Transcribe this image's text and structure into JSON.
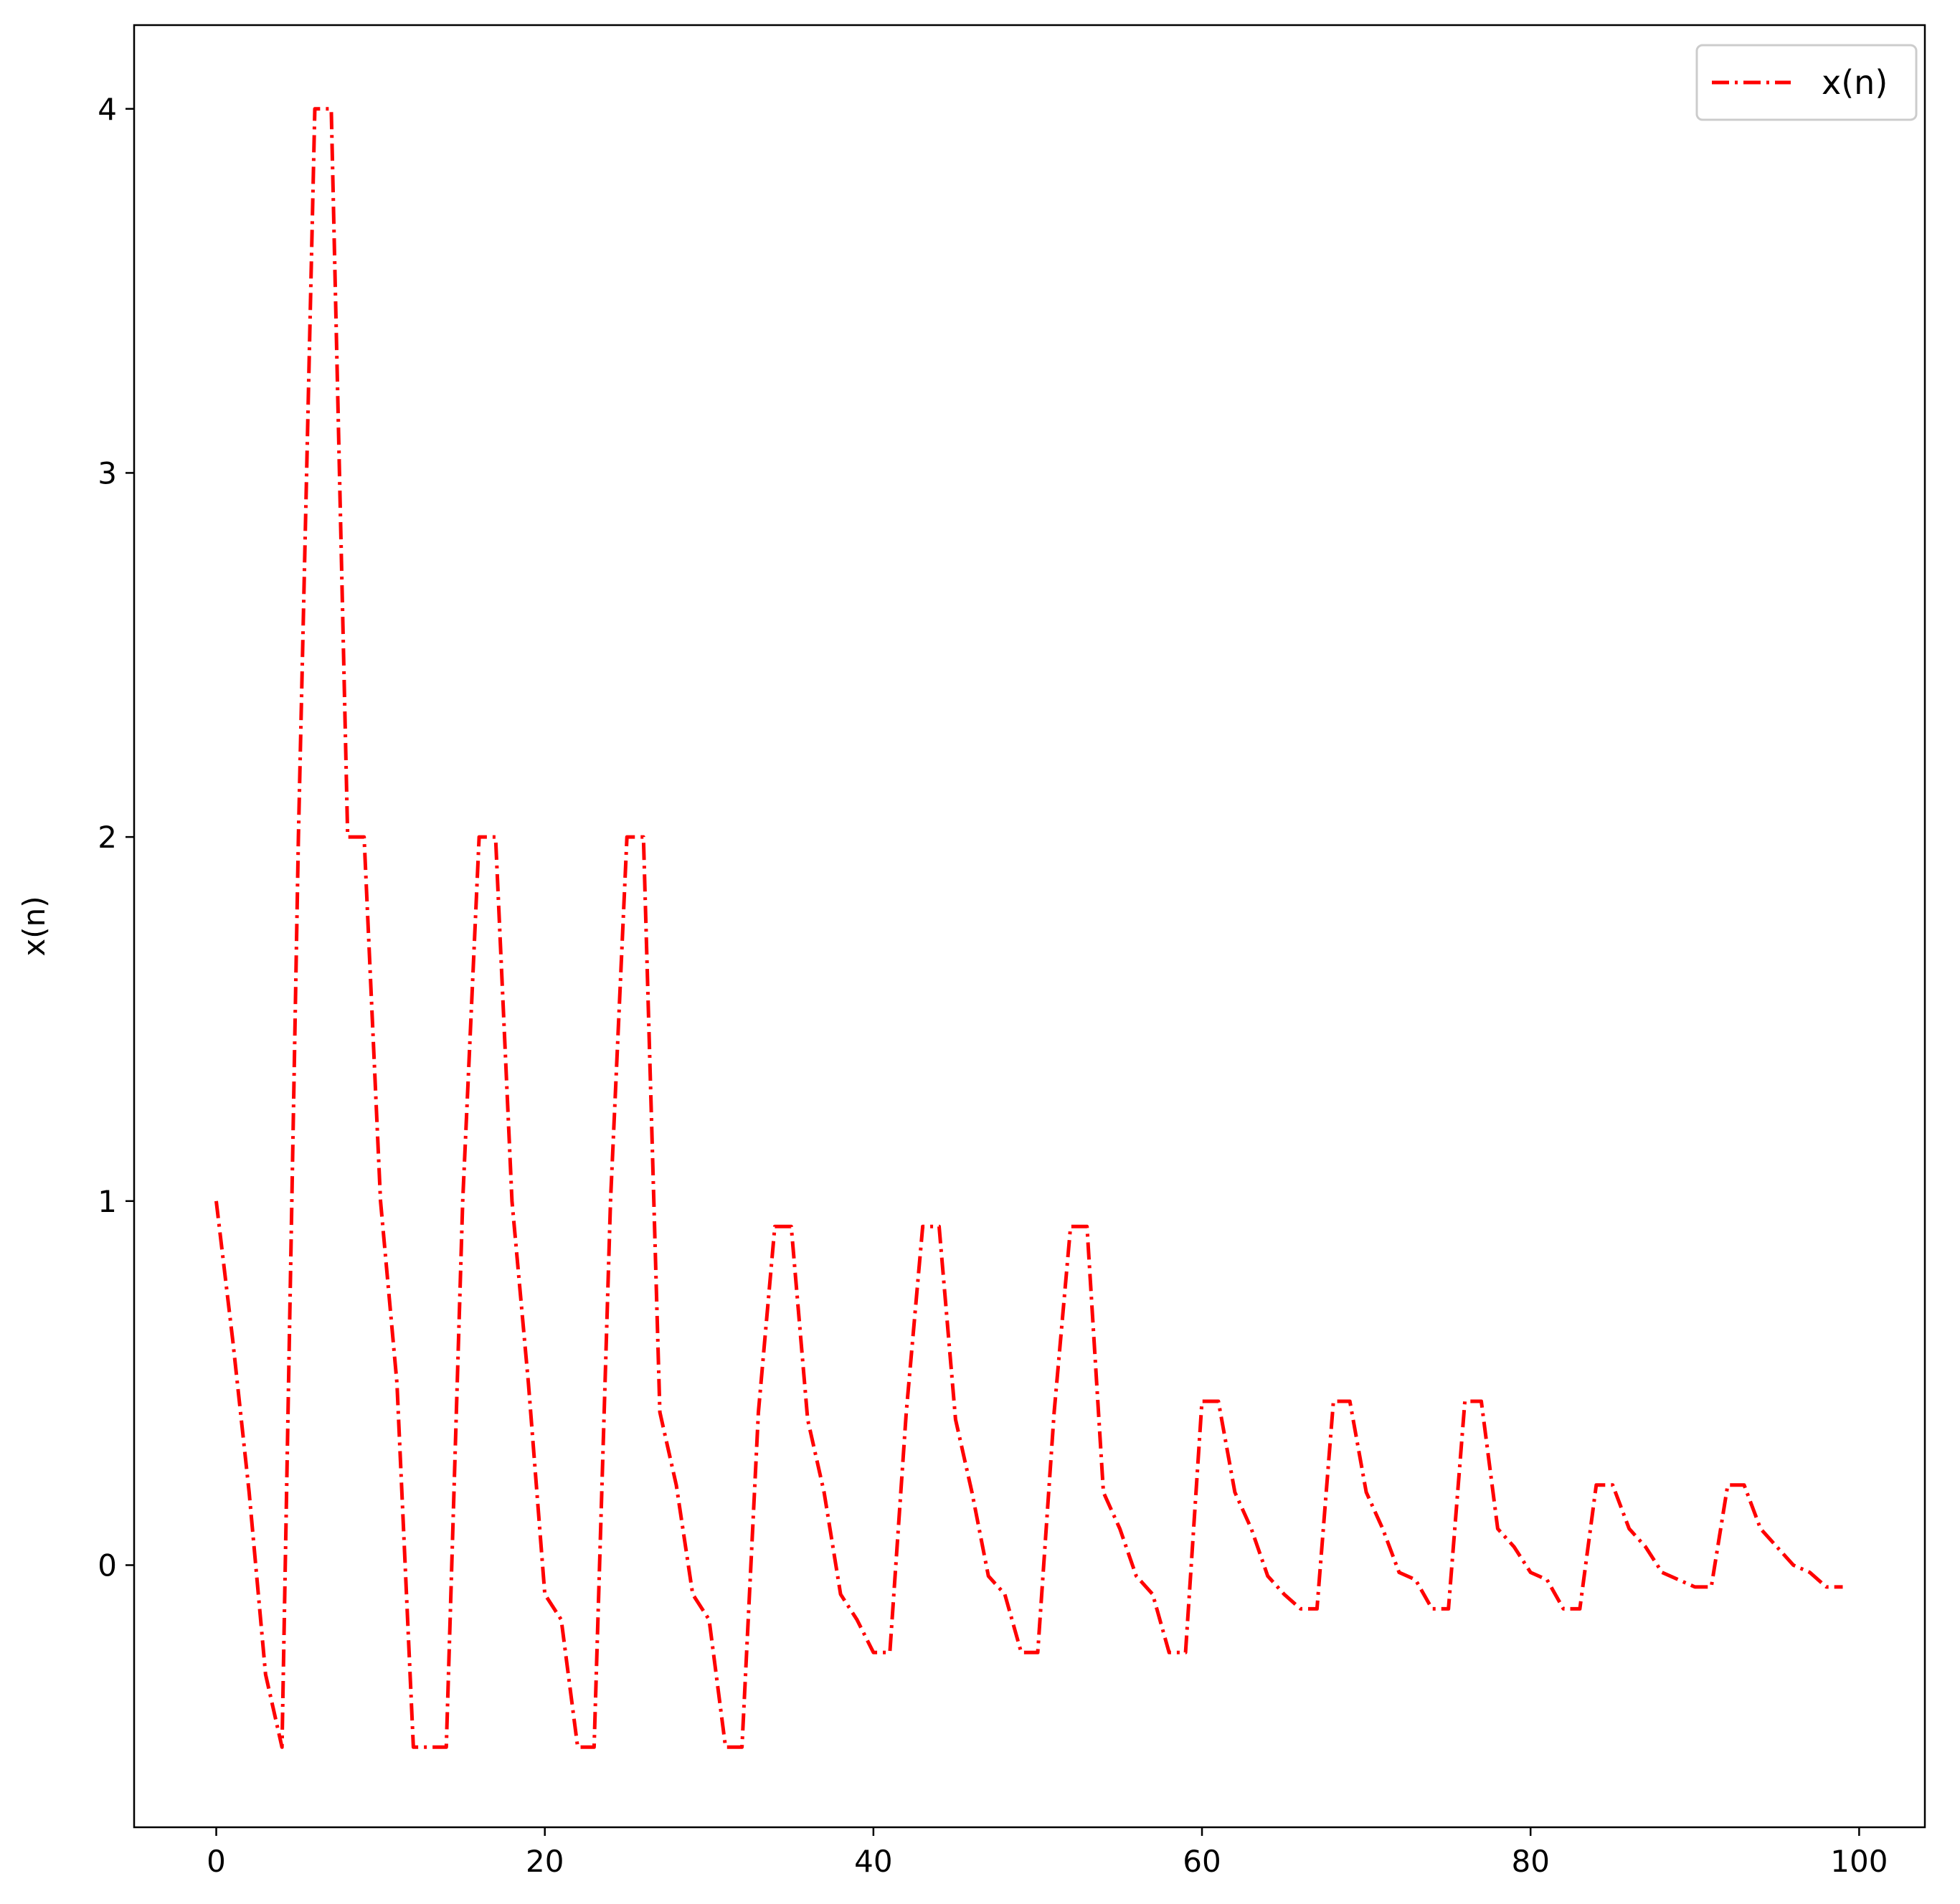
{
  "chart_data": {
    "type": "line",
    "title": "",
    "xlabel": "",
    "ylabel": "x(n)",
    "xlim": [
      -5,
      104
    ],
    "ylim": [
      -0.72,
      4.23
    ],
    "xticks": [
      0,
      20,
      40,
      60,
      80,
      100
    ],
    "yticks": [
      0,
      1,
      2,
      3,
      4
    ],
    "xtick_labels": [
      "0",
      "20",
      "40",
      "60",
      "80",
      "100"
    ],
    "ytick_labels": [
      "0",
      "1",
      "2",
      "3",
      "4"
    ],
    "grid": false,
    "legend_position": "top-right",
    "series": [
      {
        "name": "x(n)",
        "color": "#ff0000",
        "linestyle": "dashdot",
        "x": [
          0,
          1,
          2,
          3,
          4,
          5,
          6,
          7,
          8,
          9,
          10,
          11,
          12,
          13,
          14,
          15,
          16,
          17,
          18,
          19,
          20,
          21,
          22,
          23,
          24,
          25,
          26,
          27,
          28,
          29,
          30,
          31,
          32,
          33,
          34,
          35,
          36,
          37,
          38,
          39,
          40,
          41,
          42,
          43,
          44,
          45,
          46,
          47,
          48,
          49,
          50,
          51,
          52,
          53,
          54,
          55,
          56,
          57,
          58,
          59,
          60,
          61,
          62,
          63,
          64,
          65,
          66,
          67,
          68,
          69,
          70,
          71,
          72,
          73,
          74,
          75,
          76,
          77,
          78,
          79,
          80,
          81,
          82,
          83,
          84,
          85,
          86,
          87,
          88,
          89,
          90,
          91,
          92,
          93,
          94,
          95,
          96,
          97,
          98,
          99
        ],
        "y": [
          1.0,
          0.62,
          0.2,
          -0.3,
          -0.5,
          2.0,
          4.0,
          4.0,
          2.0,
          2.0,
          1.0,
          0.5,
          -0.5,
          -0.5,
          -0.5,
          1.0,
          2.0,
          2.0,
          1.0,
          0.5,
          -0.08,
          -0.15,
          -0.5,
          -0.5,
          1.0,
          2.0,
          2.0,
          0.42,
          0.22,
          -0.08,
          -0.15,
          -0.5,
          -0.5,
          0.42,
          0.93,
          0.93,
          0.4,
          0.2,
          -0.08,
          -0.15,
          -0.24,
          -0.24,
          0.42,
          0.93,
          0.93,
          0.4,
          0.2,
          -0.03,
          -0.08,
          -0.24,
          -0.24,
          0.42,
          0.93,
          0.93,
          0.2,
          0.1,
          -0.03,
          -0.08,
          -0.24,
          -0.24,
          0.45,
          0.45,
          0.2,
          0.1,
          -0.03,
          -0.08,
          -0.12,
          -0.12,
          0.45,
          0.45,
          0.2,
          0.1,
          -0.02,
          -0.04,
          -0.12,
          -0.12,
          0.45,
          0.45,
          0.1,
          0.05,
          -0.02,
          -0.04,
          -0.12,
          -0.12,
          0.22,
          0.22,
          0.1,
          0.05,
          -0.02,
          -0.04,
          -0.06,
          -0.06,
          0.22,
          0.22,
          0.1,
          0.05,
          0.0,
          -0.02,
          -0.06,
          -0.06
        ]
      }
    ]
  }
}
